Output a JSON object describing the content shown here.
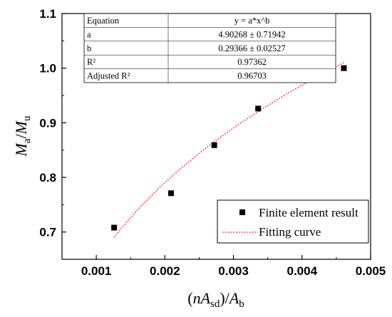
{
  "chart_data": {
    "type": "scatter",
    "x_label_parts": [
      "(",
      "nA",
      "sd",
      ")/",
      "A",
      "b"
    ],
    "y_label_parts": [
      "M",
      "a",
      "/",
      "M",
      "u"
    ],
    "xlim": [
      0.0005,
      0.005
    ],
    "ylim": [
      0.65,
      1.1
    ],
    "x_ticks": [
      0.001,
      0.002,
      0.003,
      0.004,
      0.005
    ],
    "x_tick_labels": [
      "0.001",
      "0.002",
      "0.003",
      "0.004",
      "0.005"
    ],
    "y_ticks": [
      0.7,
      0.8,
      0.9,
      1.0,
      1.1
    ],
    "y_tick_labels": [
      "0.7",
      "0.8",
      "0.9",
      "1.0",
      "1.1"
    ],
    "series": [
      {
        "name": "Finite element result",
        "kind": "scatter",
        "marker": "square",
        "color": "#000000",
        "x": [
          0.00126,
          0.00209,
          0.00272,
          0.00336,
          0.00398,
          0.00461
        ],
        "y": [
          0.708,
          0.771,
          0.859,
          0.926,
          0.988,
          1.0
        ]
      },
      {
        "name": "Fitting curve",
        "kind": "line",
        "style": "dotted",
        "color": "#e8303a",
        "model": "y = a*x^b",
        "a": 4.90268,
        "b": 0.29366,
        "x_range": [
          0.00126,
          0.00461
        ]
      }
    ],
    "fit_table": {
      "rows": [
        [
          "Equation",
          "y = a*x^b"
        ],
        [
          "a",
          "4.90268 ± 0.71942"
        ],
        [
          "b",
          "0.29366 ± 0.02527"
        ],
        [
          "R²",
          "0.97362"
        ],
        [
          "Adjusted R²",
          "0.96703"
        ]
      ]
    },
    "legend": {
      "placement": "bottom-right",
      "entries": [
        "Finite element result",
        "Fitting curve"
      ]
    },
    "grid": false
  }
}
